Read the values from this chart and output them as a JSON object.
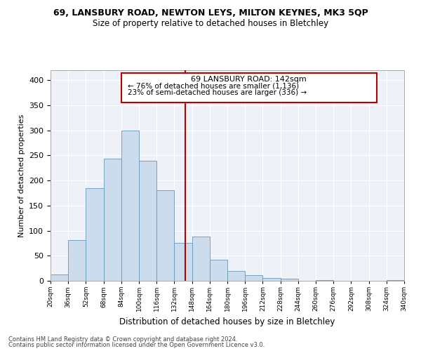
{
  "title_line1": "69, LANSBURY ROAD, NEWTON LEYS, MILTON KEYNES, MK3 5QP",
  "title_line2": "Size of property relative to detached houses in Bletchley",
  "xlabel": "Distribution of detached houses by size in Bletchley",
  "ylabel": "Number of detached properties",
  "bar_color": "#ccdcec",
  "bar_edge_color": "#6699bb",
  "bin_edges": [
    20,
    36,
    52,
    68,
    84,
    100,
    116,
    132,
    148,
    164,
    180,
    196,
    212,
    228,
    244,
    260,
    276,
    292,
    308,
    324,
    340
  ],
  "bar_heights": [
    13,
    81,
    185,
    243,
    300,
    240,
    181,
    75,
    88,
    42,
    20,
    11,
    5,
    4,
    0,
    1,
    0,
    0,
    0,
    2
  ],
  "tick_labels": [
    "20sqm",
    "36sqm",
    "52sqm",
    "68sqm",
    "84sqm",
    "100sqm",
    "116sqm",
    "132sqm",
    "148sqm",
    "164sqm",
    "180sqm",
    "196sqm",
    "212sqm",
    "228sqm",
    "244sqm",
    "260sqm",
    "276sqm",
    "292sqm",
    "308sqm",
    "324sqm",
    "340sqm"
  ],
  "vline_x": 142,
  "vline_color": "#bb0000",
  "annotation_title": "69 LANSBURY ROAD: 142sqm",
  "annotation_line1": "← 76% of detached houses are smaller (1,136)",
  "annotation_line2": "23% of semi-detached houses are larger (336) →",
  "annotation_box_color": "#bb0000",
  "ylim": [
    0,
    420
  ],
  "yticks": [
    0,
    50,
    100,
    150,
    200,
    250,
    300,
    350,
    400
  ],
  "footnote1": "Contains HM Land Registry data © Crown copyright and database right 2024.",
  "footnote2": "Contains public sector information licensed under the Open Government Licence v3.0.",
  "bg_color": "#eef2f8"
}
